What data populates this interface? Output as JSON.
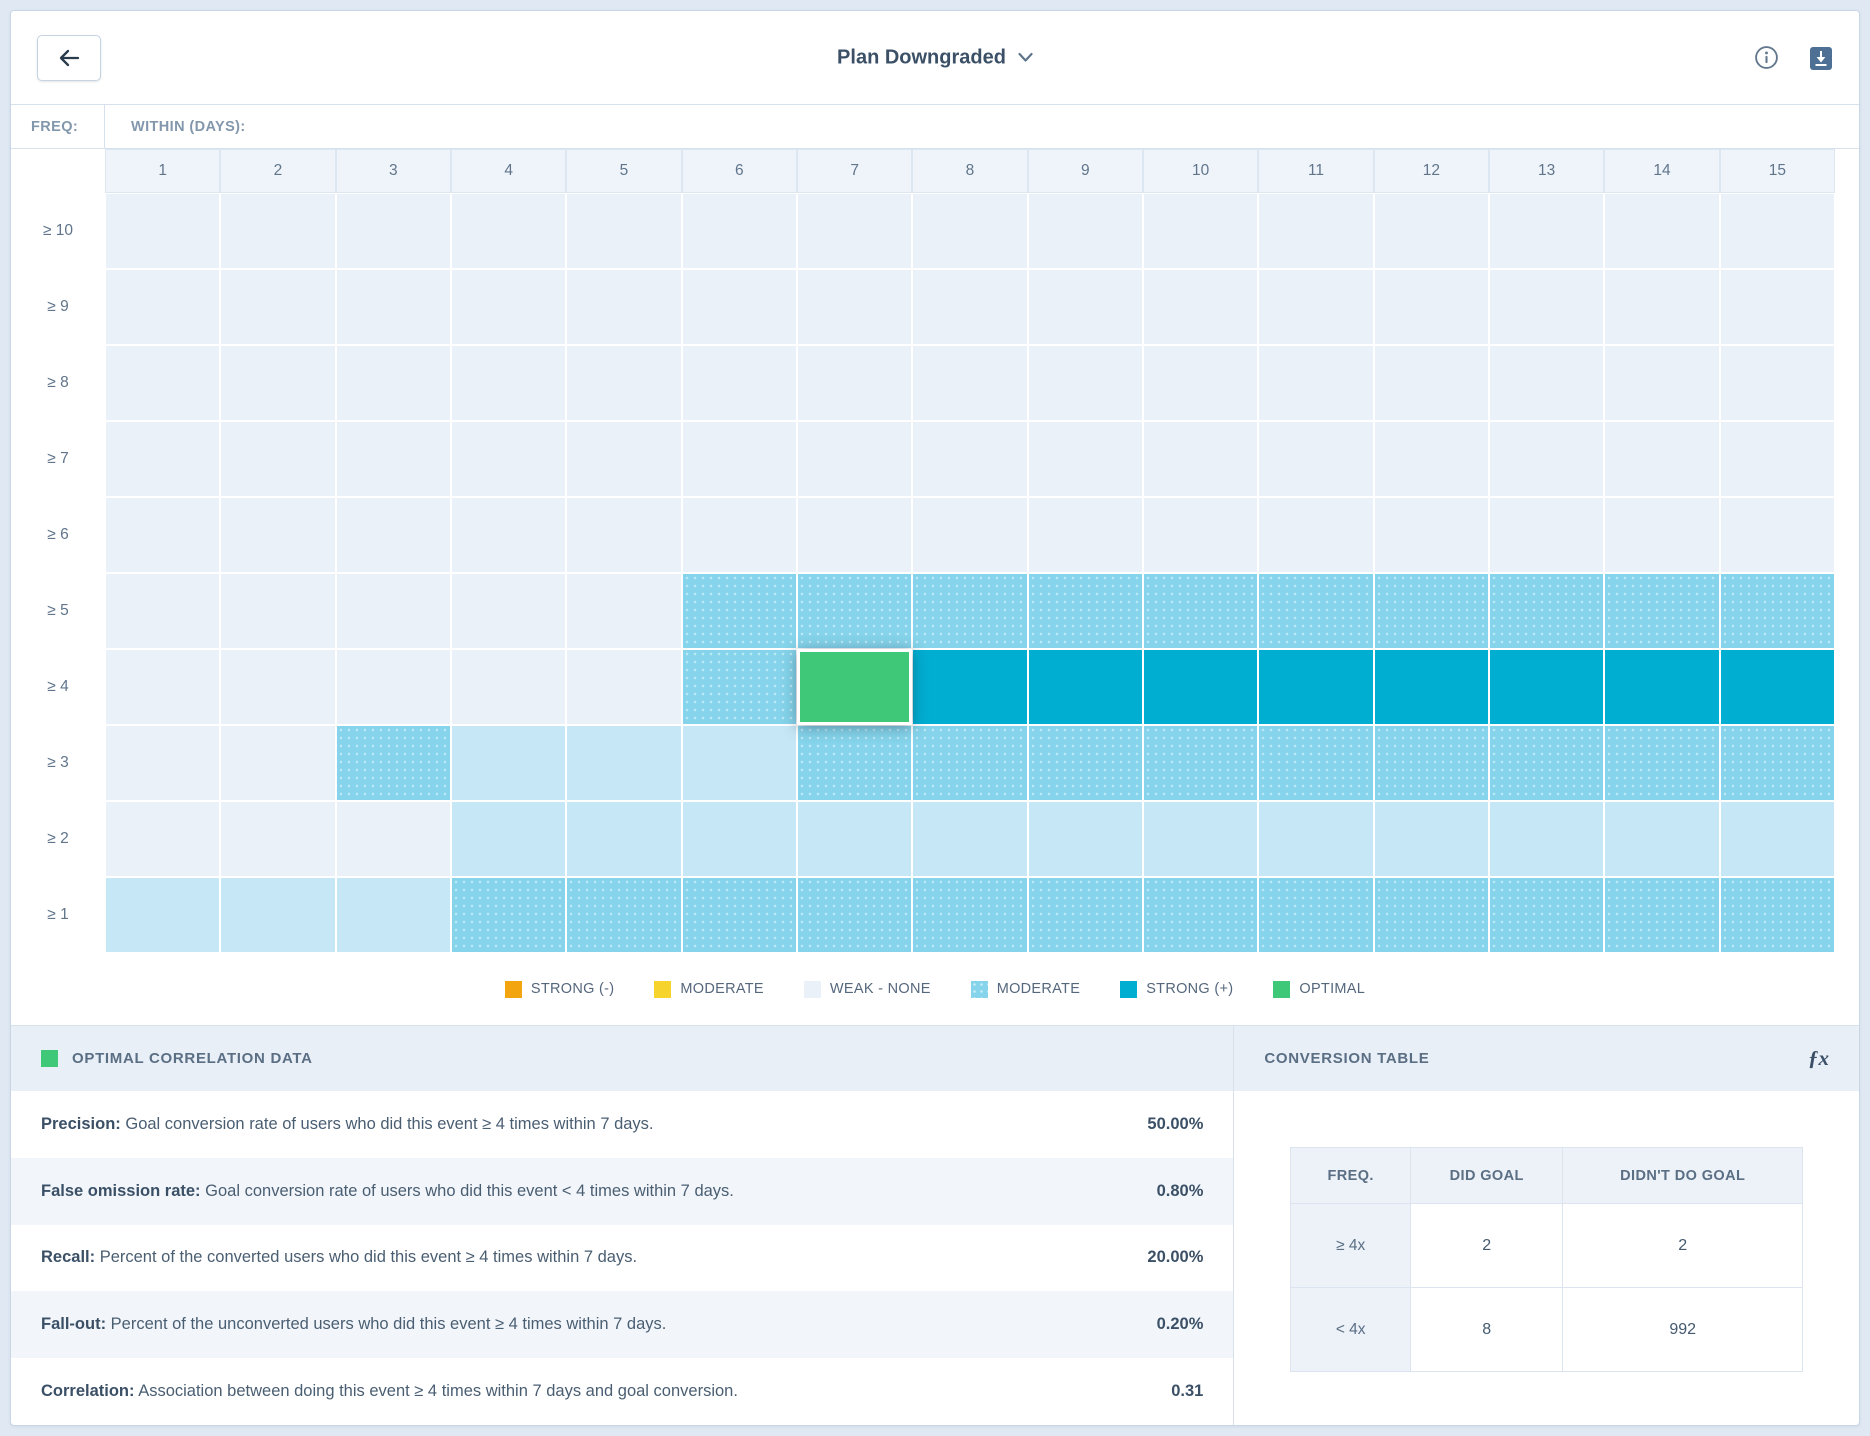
{
  "topbar": {
    "title": "Plan Downgraded",
    "icons": {
      "back": "arrow-left",
      "title_chevron": "chevron-down",
      "info": "info-circle",
      "download": "download"
    }
  },
  "heatmap": {
    "freq_label": "FREQ:",
    "within_label": "WITHIN (DAYS):",
    "columns": [
      "1",
      "2",
      "3",
      "4",
      "5",
      "6",
      "7",
      "8",
      "9",
      "10",
      "11",
      "12",
      "13",
      "14",
      "15"
    ],
    "colors": {
      "weak": "#eaf1f8",
      "light": "#c6e8f6",
      "moderate": "#85d4eb",
      "strong": "#00aed1",
      "optimal": "#3ec878"
    },
    "rows": [
      {
        "label": "≥ 10",
        "cells": [
          "weak",
          "weak",
          "weak",
          "weak",
          "weak",
          "weak",
          "weak",
          "weak",
          "weak",
          "weak",
          "weak",
          "weak",
          "weak",
          "weak",
          "weak"
        ]
      },
      {
        "label": "≥ 9",
        "cells": [
          "weak",
          "weak",
          "weak",
          "weak",
          "weak",
          "weak",
          "weak",
          "weak",
          "weak",
          "weak",
          "weak",
          "weak",
          "weak",
          "weak",
          "weak"
        ]
      },
      {
        "label": "≥ 8",
        "cells": [
          "weak",
          "weak",
          "weak",
          "weak",
          "weak",
          "weak",
          "weak",
          "weak",
          "weak",
          "weak",
          "weak",
          "weak",
          "weak",
          "weak",
          "weak"
        ]
      },
      {
        "label": "≥ 7",
        "cells": [
          "weak",
          "weak",
          "weak",
          "weak",
          "weak",
          "weak",
          "weak",
          "weak",
          "weak",
          "weak",
          "weak",
          "weak",
          "weak",
          "weak",
          "weak"
        ]
      },
      {
        "label": "≥ 6",
        "cells": [
          "weak",
          "weak",
          "weak",
          "weak",
          "weak",
          "weak",
          "weak",
          "weak",
          "weak",
          "weak",
          "weak",
          "weak",
          "weak",
          "weak",
          "weak"
        ]
      },
      {
        "label": "≥ 5",
        "cells": [
          "weak",
          "weak",
          "weak",
          "weak",
          "weak",
          "moderate",
          "moderate",
          "moderate",
          "moderate",
          "moderate",
          "moderate",
          "moderate",
          "moderate",
          "moderate",
          "moderate"
        ]
      },
      {
        "label": "≥ 4",
        "cells": [
          "weak",
          "weak",
          "weak",
          "weak",
          "weak",
          "moderate",
          "optimal",
          "strong",
          "strong",
          "strong",
          "strong",
          "strong",
          "strong",
          "strong",
          "strong"
        ]
      },
      {
        "label": "≥ 3",
        "cells": [
          "weak",
          "weak",
          "moderate",
          "light",
          "light",
          "light",
          "moderate",
          "moderate",
          "moderate",
          "moderate",
          "moderate",
          "moderate",
          "moderate",
          "moderate",
          "moderate"
        ]
      },
      {
        "label": "≥ 2",
        "cells": [
          "weak",
          "weak",
          "weak",
          "light",
          "light",
          "light",
          "light",
          "light",
          "light",
          "light",
          "light",
          "light",
          "light",
          "light",
          "light"
        ]
      },
      {
        "label": "≥ 1",
        "cells": [
          "light",
          "light",
          "light",
          "moderate",
          "moderate",
          "moderate",
          "moderate",
          "moderate",
          "moderate",
          "moderate",
          "moderate",
          "moderate",
          "moderate",
          "moderate",
          "moderate"
        ]
      }
    ]
  },
  "legend": {
    "items": [
      {
        "label": "STRONG (-)",
        "color": "#f2a50e",
        "pattern": false
      },
      {
        "label": "MODERATE",
        "color": "#f6d32d",
        "pattern": false
      },
      {
        "label": "WEAK - NONE",
        "color": "#eaf1f8",
        "pattern": false
      },
      {
        "label": "MODERATE",
        "color": "#85d4eb",
        "pattern": true
      },
      {
        "label": "STRONG (+)",
        "color": "#00aed1",
        "pattern": false
      },
      {
        "label": "OPTIMAL",
        "color": "#3ec878",
        "pattern": false
      }
    ]
  },
  "optimal_panel": {
    "title": "OPTIMAL CORRELATION DATA",
    "rows": [
      {
        "term": "Precision:",
        "desc": "Goal conversion rate of users who did this event ≥ 4 times within 7 days.",
        "value": "50.00%"
      },
      {
        "term": "False omission rate:",
        "desc": "Goal conversion rate of users who did this event < 4 times within 7 days.",
        "value": "0.80%"
      },
      {
        "term": "Recall:",
        "desc": "Percent of the converted users who did this event ≥ 4 times within 7 days.",
        "value": "20.00%"
      },
      {
        "term": "Fall-out:",
        "desc": "Percent of the unconverted users who did this event ≥ 4 times within 7 days.",
        "value": "0.20%"
      },
      {
        "term": "Correlation:",
        "desc": "Association between doing this event ≥ 4 times within 7 days and goal conversion.",
        "value": "0.31"
      }
    ]
  },
  "conversion_panel": {
    "title": "CONVERSION TABLE",
    "fx_label": "ƒx",
    "table": {
      "headers": [
        "FREQ.",
        "DID GOAL",
        "DIDN'T DO GOAL"
      ],
      "rows": [
        {
          "freq": "≥ 4x",
          "did": "2",
          "didnt": "2"
        },
        {
          "freq": "< 4x",
          "did": "8",
          "didnt": "992"
        }
      ]
    }
  }
}
